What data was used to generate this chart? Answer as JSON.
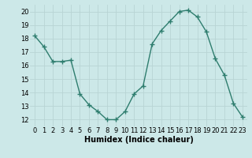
{
  "x": [
    0,
    1,
    2,
    3,
    4,
    5,
    6,
    7,
    8,
    9,
    10,
    11,
    12,
    13,
    14,
    15,
    16,
    17,
    18,
    19,
    20,
    21,
    22,
    23
  ],
  "y": [
    18.2,
    17.4,
    16.3,
    16.3,
    16.4,
    13.9,
    13.1,
    12.6,
    12.0,
    12.0,
    12.6,
    13.9,
    14.5,
    17.6,
    18.6,
    19.3,
    20.0,
    20.1,
    19.6,
    18.5,
    16.5,
    15.3,
    13.2,
    12.2
  ],
  "line_color": "#2e7d6e",
  "bg_color": "#cce8e8",
  "grid_color": "#b8d4d4",
  "xlabel": "Humidex (Indice chaleur)",
  "ylim": [
    11.5,
    20.5
  ],
  "xlim": [
    -0.5,
    23.5
  ],
  "yticks": [
    12,
    13,
    14,
    15,
    16,
    17,
    18,
    19,
    20
  ],
  "xticks": [
    0,
    1,
    2,
    3,
    4,
    5,
    6,
    7,
    8,
    9,
    10,
    11,
    12,
    13,
    14,
    15,
    16,
    17,
    18,
    19,
    20,
    21,
    22,
    23
  ],
  "xtick_labels": [
    "0",
    "1",
    "2",
    "3",
    "4",
    "5",
    "6",
    "7",
    "8",
    "9",
    "10",
    "11",
    "12",
    "13",
    "14",
    "15",
    "16",
    "17",
    "18",
    "19",
    "20",
    "21",
    "22",
    "23"
  ],
  "marker": "+",
  "markersize": 5,
  "linewidth": 1.0,
  "xlabel_fontsize": 7,
  "tick_fontsize": 6
}
